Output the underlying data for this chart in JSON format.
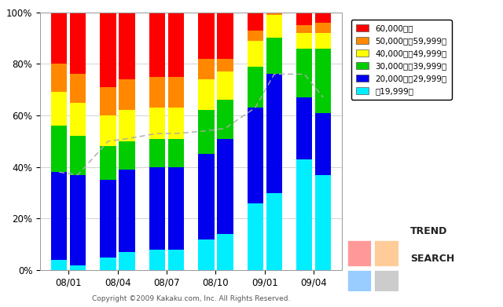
{
  "x_labels": [
    "08/01",
    "08/04",
    "08/07",
    "08/10",
    "09/01",
    "09/04"
  ],
  "colors": {
    "under_20k": "#00EEFF",
    "20k_30k": "#0000EE",
    "30k_40k": "#00CC00",
    "40k_50k": "#FFFF00",
    "50k_60k": "#FF8800",
    "over_60k": "#FF0000"
  },
  "legend_labels": [
    "60,000円～",
    "50,000円～59,999円",
    "40,000円～49,999円",
    "30,000円～39,999円",
    "20,000円～29,999円",
    "～19,999円"
  ],
  "under_20k": [
    4,
    2,
    5,
    7,
    8,
    8,
    12,
    14,
    26,
    30,
    43,
    37
  ],
  "20k_30k": [
    34,
    35,
    30,
    32,
    32,
    32,
    33,
    37,
    37,
    46,
    24,
    24
  ],
  "30k_40k": [
    18,
    15,
    13,
    11,
    11,
    11,
    17,
    15,
    16,
    14,
    19,
    25
  ],
  "40k_50k": [
    13,
    13,
    12,
    12,
    12,
    12,
    12,
    11,
    10,
    9,
    6,
    6
  ],
  "50k_60k": [
    11,
    11,
    11,
    12,
    12,
    12,
    8,
    5,
    4,
    3,
    3,
    4
  ],
  "over_60k": [
    20,
    24,
    29,
    26,
    25,
    25,
    18,
    18,
    7,
    8,
    5,
    4
  ],
  "dashed_line_values": [
    38,
    37,
    50,
    51,
    53,
    53,
    54,
    55,
    63,
    76,
    76,
    67
  ],
  "n_bars": 12,
  "background_color": "#FFFFFF",
  "grid_color": "#CCCCCC",
  "copyright": "Copyright ©2009 Kakaku.com, Inc. All Rights Reserved."
}
